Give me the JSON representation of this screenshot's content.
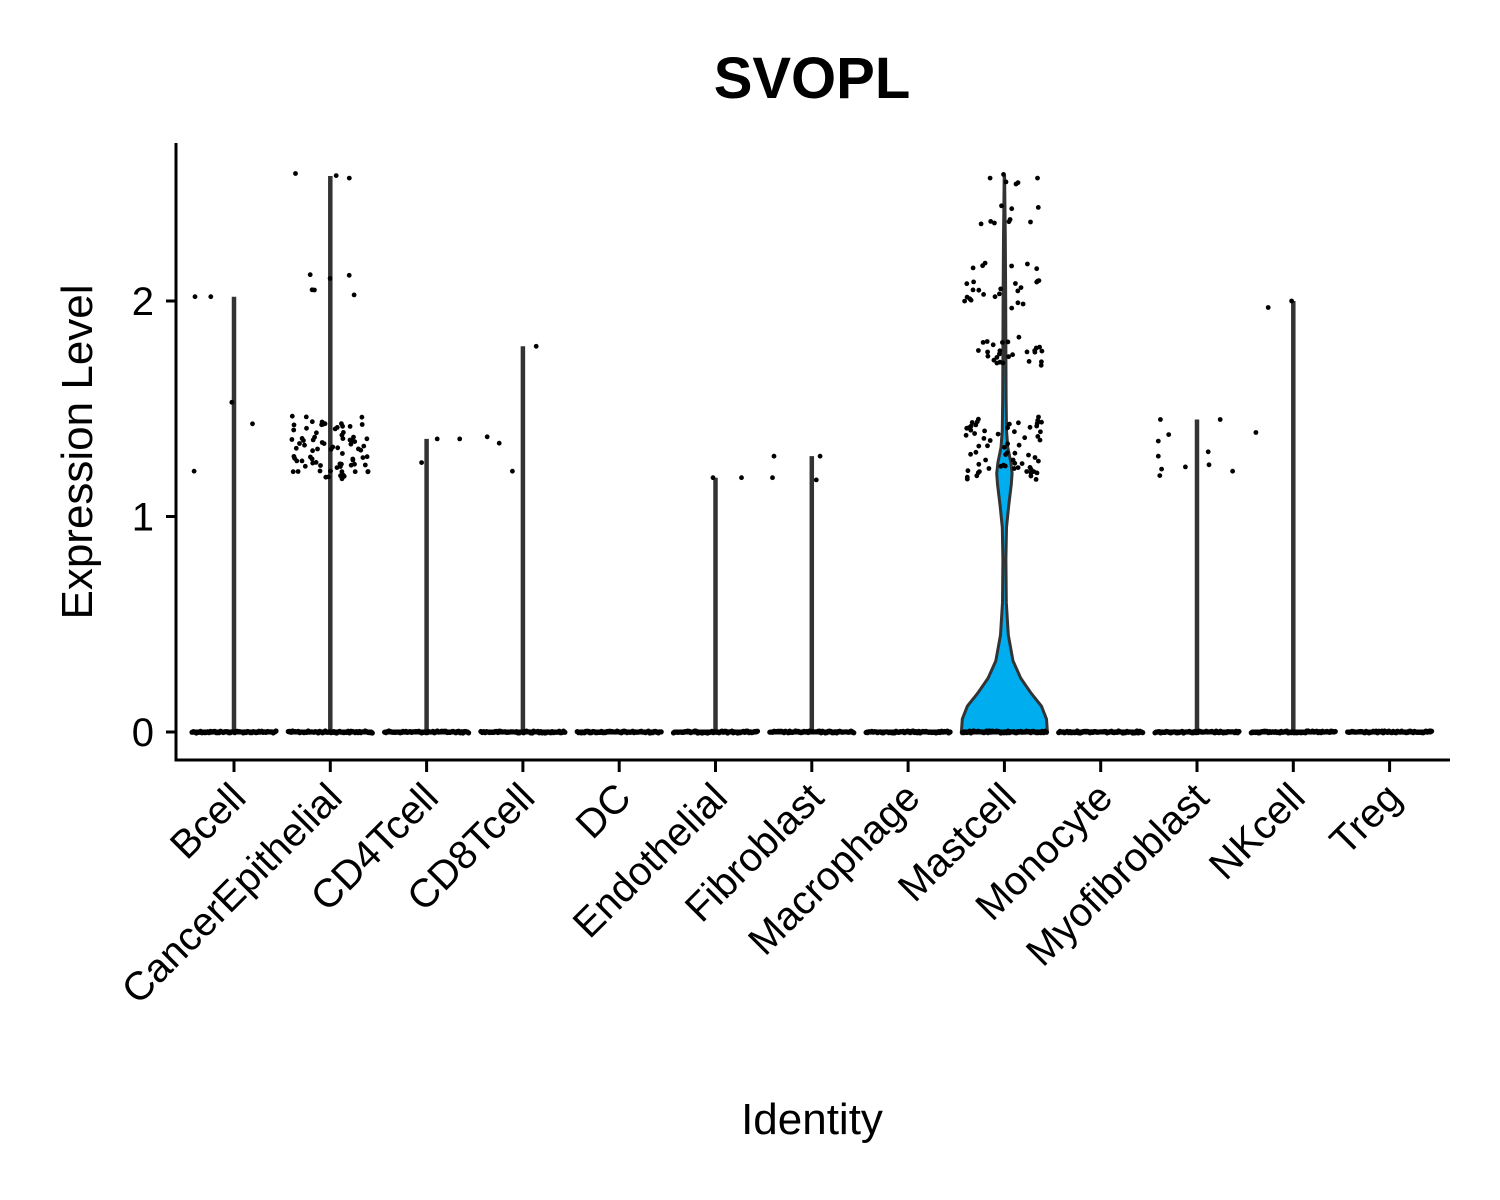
{
  "chart_data": {
    "type": "violin",
    "title": "SVOPL",
    "xlabel": "Identity",
    "ylabel": "Expression Level",
    "ylim": [
      -0.13,
      2.72
    ],
    "yticks": [
      0,
      1,
      2
    ],
    "grid": false,
    "legend": "none",
    "categories": [
      "Bcell",
      "CancerEpithelial",
      "CD4Tcell",
      "CD8Tcell",
      "DC",
      "Endothelial",
      "Fibroblast",
      "Macrophage",
      "Mastcell",
      "Monocyte",
      "Myofibroblast",
      "NKcell",
      "Treg"
    ],
    "colors": {
      "Mastcell": "#00AEEF",
      "default": "#F8766D",
      "outline": "#333333",
      "points": "#000000"
    },
    "max_values": [
      2.02,
      2.58,
      1.36,
      1.79,
      0,
      1.18,
      1.28,
      0,
      2.58,
      0,
      1.45,
      2.0,
      0
    ],
    "nonzero_points": [
      {
        "category": "Bcell",
        "values": [
          1.53,
          2.02,
          1.43,
          1.21,
          2.02
        ]
      },
      {
        "category": "CancerEpithelial",
        "values": [
          2.58,
          2.11,
          2.04,
          1.46,
          1.44,
          1.43,
          1.42,
          1.41,
          1.4,
          1.38,
          1.37,
          1.36,
          1.35,
          1.34,
          1.33,
          1.32,
          1.31,
          1.3,
          1.29,
          1.28,
          1.27,
          1.26,
          1.25,
          1.24,
          1.23,
          1.22,
          1.21,
          1.2,
          1.19,
          1.18
        ]
      },
      {
        "category": "CD4Tcell",
        "values": [
          1.36,
          1.36,
          1.25
        ]
      },
      {
        "category": "CD8Tcell",
        "values": [
          1.79,
          1.37,
          1.34,
          1.21
        ]
      },
      {
        "category": "Endothelial",
        "values": [
          1.18,
          1.18
        ]
      },
      {
        "category": "Fibroblast",
        "values": [
          1.28,
          1.28,
          1.18,
          1.17
        ]
      },
      {
        "category": "Mastcell",
        "values": [
          2.58,
          2.55,
          2.43,
          2.37,
          2.37,
          2.17,
          2.15,
          2.09,
          2.09,
          2.06,
          2.04,
          2.03,
          2.0,
          1.98,
          1.82,
          1.8,
          1.78,
          1.77,
          1.76,
          1.75,
          1.73,
          1.72,
          1.71,
          1.45,
          1.44,
          1.43,
          1.42,
          1.41,
          1.4,
          1.39,
          1.38,
          1.36,
          1.34,
          1.32,
          1.3,
          1.28,
          1.26,
          1.25,
          1.24,
          1.23,
          1.22,
          1.21,
          1.2,
          1.19,
          1.18
        ]
      },
      {
        "category": "Myofibroblast",
        "values": [
          1.45,
          1.45,
          1.38,
          1.35,
          1.3,
          1.28,
          1.24,
          1.23,
          1.22,
          1.21,
          1.19
        ]
      },
      {
        "category": "NKcell",
        "values": [
          2.0,
          1.97,
          1.39
        ]
      }
    ],
    "mastcell_density": [
      {
        "y": 0.0,
        "w": 1.0
      },
      {
        "y": 0.06,
        "w": 0.98
      },
      {
        "y": 0.12,
        "w": 0.86
      },
      {
        "y": 0.18,
        "w": 0.62
      },
      {
        "y": 0.25,
        "w": 0.38
      },
      {
        "y": 0.33,
        "w": 0.2
      },
      {
        "y": 0.45,
        "w": 0.09
      },
      {
        "y": 0.6,
        "w": 0.045
      },
      {
        "y": 0.8,
        "w": 0.035
      },
      {
        "y": 0.95,
        "w": 0.05
      },
      {
        "y": 1.05,
        "w": 0.1
      },
      {
        "y": 1.15,
        "w": 0.16
      },
      {
        "y": 1.2,
        "w": 0.18
      },
      {
        "y": 1.25,
        "w": 0.15
      },
      {
        "y": 1.32,
        "w": 0.08
      },
      {
        "y": 1.4,
        "w": 0.05
      },
      {
        "y": 1.55,
        "w": 0.04
      },
      {
        "y": 1.75,
        "w": 0.035
      },
      {
        "y": 2.0,
        "w": 0.03
      },
      {
        "y": 2.3,
        "w": 0.02
      },
      {
        "y": 2.58,
        "w": 0.005
      }
    ]
  }
}
